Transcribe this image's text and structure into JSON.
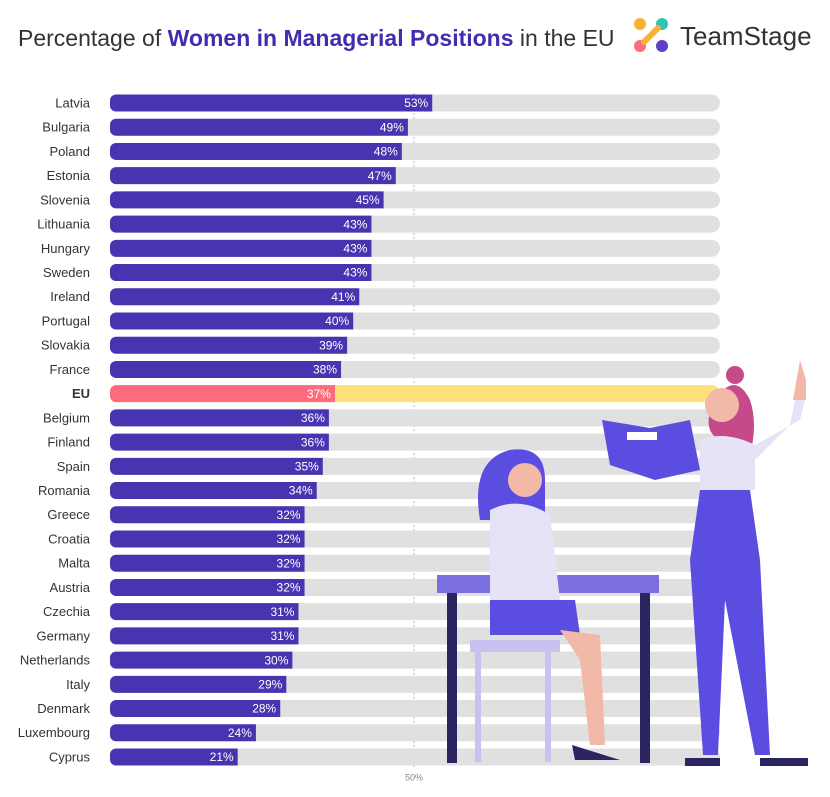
{
  "chart_data": {
    "type": "bar",
    "orientation": "horizontal",
    "title": [
      "Percentage of",
      "Women in Managerial Positions",
      "in the EU"
    ],
    "logo": "TeamStage",
    "categories": [
      "Latvia",
      "Bulgaria",
      "Poland",
      "Estonia",
      "Slovenia",
      "Lithuania",
      "Hungary",
      "Sweden",
      "Ireland",
      "Portugal",
      "Slovakia",
      "France",
      "EU",
      "Belgium",
      "Finland",
      "Spain",
      "Romania",
      "Greece",
      "Croatia",
      "Malta",
      "Austria",
      "Czechia",
      "Germany",
      "Netherlands",
      "Italy",
      "Denmark",
      "Luxembourg",
      "Cyprus"
    ],
    "values": [
      53,
      49,
      48,
      47,
      45,
      43,
      43,
      43,
      41,
      40,
      39,
      38,
      37,
      36,
      36,
      35,
      34,
      32,
      32,
      32,
      32,
      31,
      31,
      30,
      29,
      28,
      24,
      21
    ],
    "value_labels": [
      "53%",
      "49%",
      "48%",
      "47%",
      "45%",
      "43%",
      "43%",
      "43%",
      "41%",
      "40%",
      "39%",
      "38%",
      "37%",
      "36%",
      "36%",
      "35%",
      "34%",
      "32%",
      "32%",
      "32%",
      "32%",
      "31%",
      "31%",
      "30%",
      "29%",
      "28%",
      "24%",
      "21%"
    ],
    "bar_colors": [
      "#4634b0",
      "#4634b0",
      "#4634b0",
      "#4634b0",
      "#4634b0",
      "#4634b0",
      "#4634b0",
      "#4634b0",
      "#4634b0",
      "#4634b0",
      "#4634b0",
      "#4634b0",
      "#fd6b7c",
      "#4634b0",
      "#4634b0",
      "#4634b0",
      "#4634b0",
      "#4634b0",
      "#4634b0",
      "#4634b0",
      "#4634b0",
      "#4634b0",
      "#4634b0",
      "#4634b0",
      "#4634b0",
      "#4634b0",
      "#4634b0",
      "#4634b0"
    ],
    "track_colors": [
      "#e0e0e0",
      "#e0e0e0",
      "#e0e0e0",
      "#e0e0e0",
      "#e0e0e0",
      "#e0e0e0",
      "#e0e0e0",
      "#e0e0e0",
      "#e0e0e0",
      "#e0e0e0",
      "#e0e0e0",
      "#e0e0e0",
      "#fde27a",
      "#e0e0e0",
      "#e0e0e0",
      "#e0e0e0",
      "#e0e0e0",
      "#e0e0e0",
      "#e0e0e0",
      "#e0e0e0",
      "#e0e0e0",
      "#e0e0e0",
      "#e0e0e0",
      "#e0e0e0",
      "#e0e0e0",
      "#e0e0e0",
      "#e0e0e0",
      "#e0e0e0"
    ],
    "xlim": [
      0,
      100
    ],
    "xticks": [
      {
        "value": 50,
        "label": "50%"
      }
    ]
  }
}
